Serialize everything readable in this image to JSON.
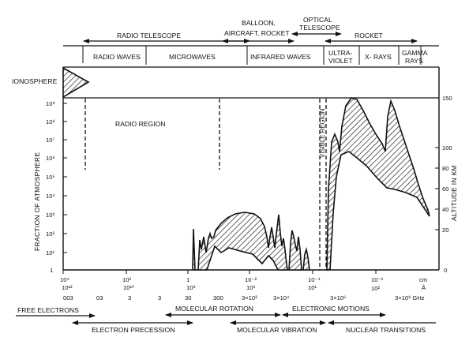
{
  "top": {
    "observing_methods": [
      "RADIO TELESCOPE",
      "BALLOON,",
      "AIRCRAFT, ROCKET",
      "OPTICAL",
      "TELESCOPE",
      "ROCKET"
    ],
    "bands": [
      "RADIO WAVES",
      "MICROWAVES",
      "INFRARED WAVES",
      "ULTRA-",
      "VIOLET",
      "X- RAYS",
      "GAMMA",
      "RAYS"
    ]
  },
  "plot": {
    "ionosphere_label": "IONOSPHERE",
    "radio_region_label": "RADIO REGION",
    "visible_region_label": "VISIBLE REGION",
    "left_axis_label": "FRACTION OF ATMOSPHERE",
    "right_axis_label": "ALTITUDE IN KM",
    "left_ticks": [
      "10⁹",
      "10⁸",
      "10⁷",
      "10⁶",
      "10⁵",
      "10⁴",
      "10³",
      "10²",
      "10¹",
      "1"
    ],
    "right_ticks": [
      "150",
      "100",
      "80",
      "60",
      "40",
      "20",
      "0"
    ]
  },
  "scales": {
    "wavelength_ticks": [
      "10⁴",
      "10²",
      "1",
      "10⁻²",
      "10⁻⁴",
      "10⁻⁶",
      "Å"
    ],
    "wavelength_unit": "cm",
    "frequency_ticks": [
      "10¹²",
      "10¹⁰",
      "10⁸",
      "10⁶",
      "10¹"
    ],
    "ghz_ticks": [
      "003",
      "03",
      "3",
      "3",
      "30",
      "300",
      "3×10³",
      "3×10⁴",
      "3×10⁶",
      "10²",
      "3×10⁸ GHz"
    ]
  },
  "processes": [
    "FREE ELECTRONS",
    "ELECTRON PRECESSION",
    "MOLECULAR ROTATION",
    "MOLECULAR VIBRATION",
    "ELECTRONIC MOTIONS",
    "NUCLEAR TRANSITIONS"
  ]
}
